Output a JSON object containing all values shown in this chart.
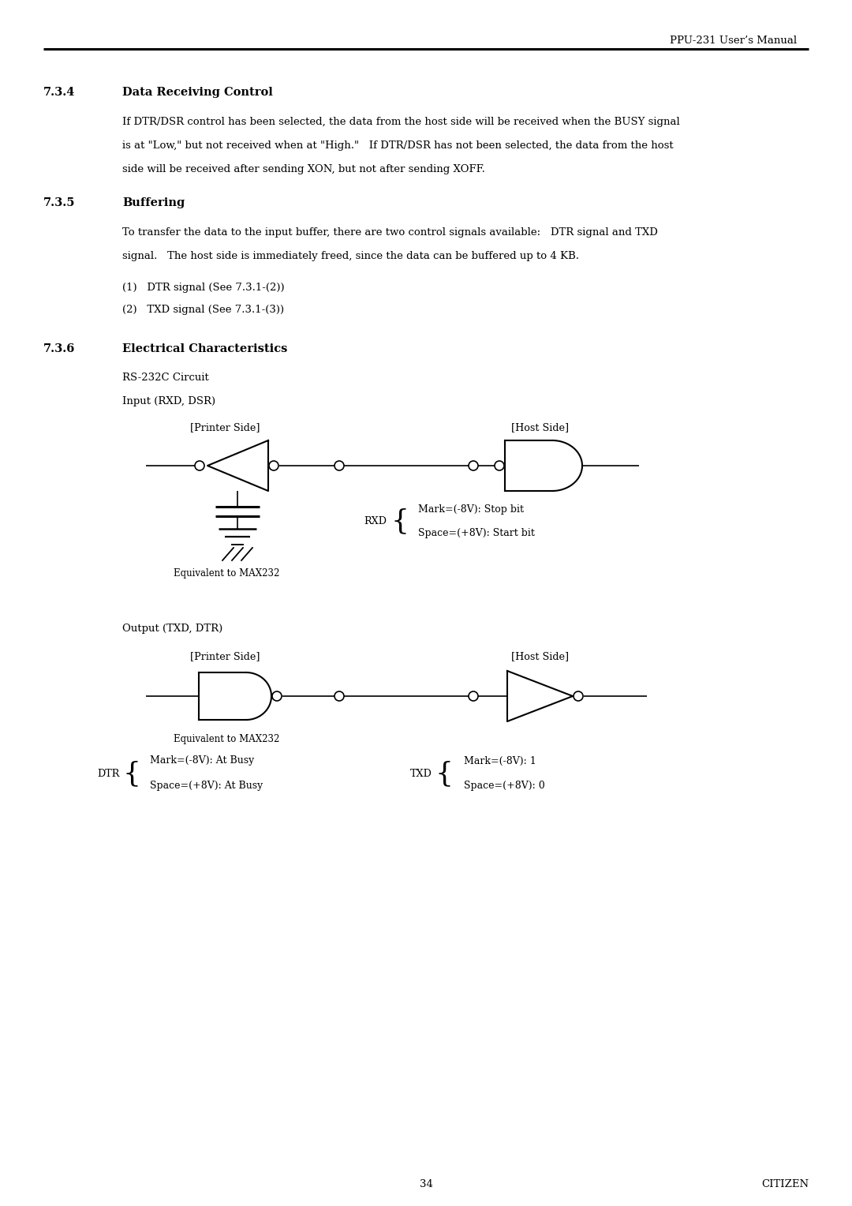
{
  "header_text": "PPU-231 User’s Manual",
  "section_734_num": "7.3.4",
  "section_734_title": "Data Receiving Control",
  "section_734_body1": "If DTR/DSR control has been selected, the data from the host side will be received when the BUSY signal",
  "section_734_body2": "is at \"Low,\" but not received when at \"High.\"   If DTR/DSR has not been selected, the data from the host",
  "section_734_body3": "side will be received after sending XON, but not after sending XOFF.",
  "section_735_num": "7.3.5",
  "section_735_title": "Buffering",
  "section_735_body1": "To transfer the data to the input buffer, there are two control signals available:   DTR signal and TXD",
  "section_735_body2": "signal.   The host side is immediately freed, since the data can be buffered up to 4 KB.",
  "item1": "(1)   DTR signal (See 7.3.1-(2))",
  "item2": "(2)   TXD signal (See 7.3.1-(3))",
  "section_736_num": "7.3.6",
  "section_736_title": "Electrical Characteristics",
  "rs232c_label": "RS-232C Circuit",
  "input_label": "Input (RXD, DSR)",
  "printer_side_label": "[Printer Side]",
  "host_side_label": "[Host Side]",
  "equiv_max232": "Equivalent to MAX232",
  "rxd_label": "RXD",
  "rxd_mark": "Mark=(-8V): Stop bit",
  "rxd_space": "Space=(+8V): Start bit",
  "output_label": "Output (TXD, DTR)",
  "printer_side_label2": "[Printer Side]",
  "host_side_label2": "[Host Side]",
  "equiv_max232_2": "Equivalent to MAX232",
  "dtr_label": "DTR",
  "dtr_mark": "Mark=(-8V): At Busy",
  "dtr_space": "Space=(+8V): At Busy",
  "txd_label": "TXD",
  "txd_mark": "Mark=(-8V): 1",
  "txd_space": "Space=(+8V): 0",
  "page_num": "34",
  "footer_right": "CITIZEN",
  "bg_color": "#ffffff",
  "text_color": "#000000",
  "line_color": "#000000"
}
